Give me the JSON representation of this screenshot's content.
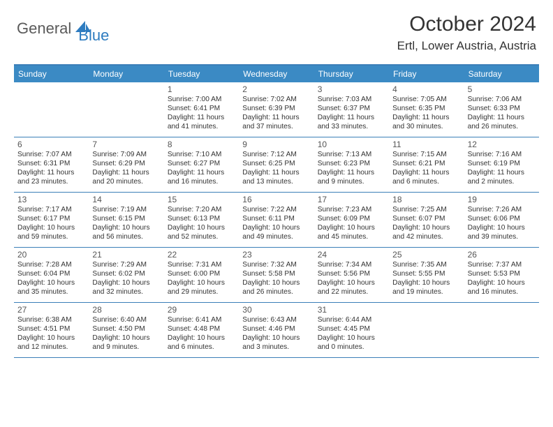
{
  "logo": {
    "text1": "General",
    "text2": "Blue"
  },
  "title": "October 2024",
  "location": "Ertl, Lower Austria, Austria",
  "colors": {
    "headerBg": "#3b8ac4",
    "border": "#3b7fb8",
    "logoGray": "#5a5a5a",
    "logoBlue": "#2e7cc0"
  },
  "dayNames": [
    "Sunday",
    "Monday",
    "Tuesday",
    "Wednesday",
    "Thursday",
    "Friday",
    "Saturday"
  ],
  "weeks": [
    [
      null,
      null,
      {
        "n": "1",
        "sr": "7:00 AM",
        "ss": "6:41 PM",
        "dl": "11 hours and 41 minutes."
      },
      {
        "n": "2",
        "sr": "7:02 AM",
        "ss": "6:39 PM",
        "dl": "11 hours and 37 minutes."
      },
      {
        "n": "3",
        "sr": "7:03 AM",
        "ss": "6:37 PM",
        "dl": "11 hours and 33 minutes."
      },
      {
        "n": "4",
        "sr": "7:05 AM",
        "ss": "6:35 PM",
        "dl": "11 hours and 30 minutes."
      },
      {
        "n": "5",
        "sr": "7:06 AM",
        "ss": "6:33 PM",
        "dl": "11 hours and 26 minutes."
      }
    ],
    [
      {
        "n": "6",
        "sr": "7:07 AM",
        "ss": "6:31 PM",
        "dl": "11 hours and 23 minutes."
      },
      {
        "n": "7",
        "sr": "7:09 AM",
        "ss": "6:29 PM",
        "dl": "11 hours and 20 minutes."
      },
      {
        "n": "8",
        "sr": "7:10 AM",
        "ss": "6:27 PM",
        "dl": "11 hours and 16 minutes."
      },
      {
        "n": "9",
        "sr": "7:12 AM",
        "ss": "6:25 PM",
        "dl": "11 hours and 13 minutes."
      },
      {
        "n": "10",
        "sr": "7:13 AM",
        "ss": "6:23 PM",
        "dl": "11 hours and 9 minutes."
      },
      {
        "n": "11",
        "sr": "7:15 AM",
        "ss": "6:21 PM",
        "dl": "11 hours and 6 minutes."
      },
      {
        "n": "12",
        "sr": "7:16 AM",
        "ss": "6:19 PM",
        "dl": "11 hours and 2 minutes."
      }
    ],
    [
      {
        "n": "13",
        "sr": "7:17 AM",
        "ss": "6:17 PM",
        "dl": "10 hours and 59 minutes."
      },
      {
        "n": "14",
        "sr": "7:19 AM",
        "ss": "6:15 PM",
        "dl": "10 hours and 56 minutes."
      },
      {
        "n": "15",
        "sr": "7:20 AM",
        "ss": "6:13 PM",
        "dl": "10 hours and 52 minutes."
      },
      {
        "n": "16",
        "sr": "7:22 AM",
        "ss": "6:11 PM",
        "dl": "10 hours and 49 minutes."
      },
      {
        "n": "17",
        "sr": "7:23 AM",
        "ss": "6:09 PM",
        "dl": "10 hours and 45 minutes."
      },
      {
        "n": "18",
        "sr": "7:25 AM",
        "ss": "6:07 PM",
        "dl": "10 hours and 42 minutes."
      },
      {
        "n": "19",
        "sr": "7:26 AM",
        "ss": "6:06 PM",
        "dl": "10 hours and 39 minutes."
      }
    ],
    [
      {
        "n": "20",
        "sr": "7:28 AM",
        "ss": "6:04 PM",
        "dl": "10 hours and 35 minutes."
      },
      {
        "n": "21",
        "sr": "7:29 AM",
        "ss": "6:02 PM",
        "dl": "10 hours and 32 minutes."
      },
      {
        "n": "22",
        "sr": "7:31 AM",
        "ss": "6:00 PM",
        "dl": "10 hours and 29 minutes."
      },
      {
        "n": "23",
        "sr": "7:32 AM",
        "ss": "5:58 PM",
        "dl": "10 hours and 26 minutes."
      },
      {
        "n": "24",
        "sr": "7:34 AM",
        "ss": "5:56 PM",
        "dl": "10 hours and 22 minutes."
      },
      {
        "n": "25",
        "sr": "7:35 AM",
        "ss": "5:55 PM",
        "dl": "10 hours and 19 minutes."
      },
      {
        "n": "26",
        "sr": "7:37 AM",
        "ss": "5:53 PM",
        "dl": "10 hours and 16 minutes."
      }
    ],
    [
      {
        "n": "27",
        "sr": "6:38 AM",
        "ss": "4:51 PM",
        "dl": "10 hours and 12 minutes."
      },
      {
        "n": "28",
        "sr": "6:40 AM",
        "ss": "4:50 PM",
        "dl": "10 hours and 9 minutes."
      },
      {
        "n": "29",
        "sr": "6:41 AM",
        "ss": "4:48 PM",
        "dl": "10 hours and 6 minutes."
      },
      {
        "n": "30",
        "sr": "6:43 AM",
        "ss": "4:46 PM",
        "dl": "10 hours and 3 minutes."
      },
      {
        "n": "31",
        "sr": "6:44 AM",
        "ss": "4:45 PM",
        "dl": "10 hours and 0 minutes."
      },
      null,
      null
    ]
  ],
  "labels": {
    "sunrise": "Sunrise:",
    "sunset": "Sunset:",
    "daylight": "Daylight:"
  }
}
